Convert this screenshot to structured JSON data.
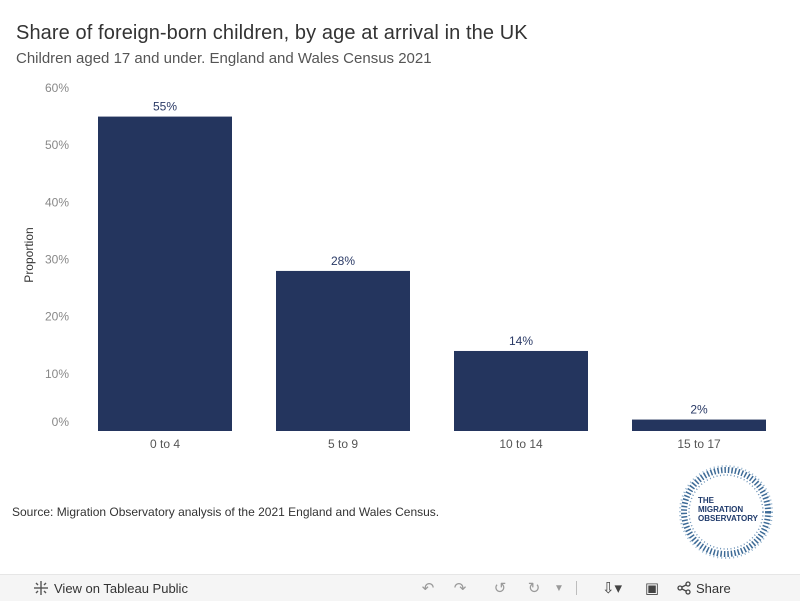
{
  "chart_data": {
    "type": "bar",
    "title": "Share of foreign-born children, by age at arrival in the UK",
    "subtitle": "Children aged 17 and under. England and Wales Census 2021",
    "categories": [
      "0 to 4",
      "5 to 9",
      "10 to 14",
      "15 to 17"
    ],
    "values": [
      55,
      28,
      14,
      2
    ],
    "data_labels": [
      "55%",
      "28%",
      "14%",
      "2%"
    ],
    "ylabel": "Proportion",
    "xlabel": "",
    "ylim": [
      0,
      60
    ],
    "yticks": [
      0,
      10,
      20,
      30,
      40,
      50,
      60
    ],
    "ytick_labels": [
      "0%",
      "10%",
      "20%",
      "30%",
      "40%",
      "50%",
      "60%"
    ],
    "grid": false,
    "bar_color": "#24355e"
  },
  "source": "Source: Migration Observatory analysis of the 2021 England and Wales Census.",
  "logo": {
    "line1": "THE",
    "line2": "MIGRATION",
    "line3": "OBSERVATORY"
  },
  "toolbar": {
    "view_label": "View on Tableau Public",
    "share_label": "Share",
    "icons": [
      "tableau-icon",
      "undo-icon",
      "redo-icon",
      "revert-icon",
      "refresh-icon",
      "download-icon",
      "fullscreen-icon",
      "share-icon"
    ]
  }
}
